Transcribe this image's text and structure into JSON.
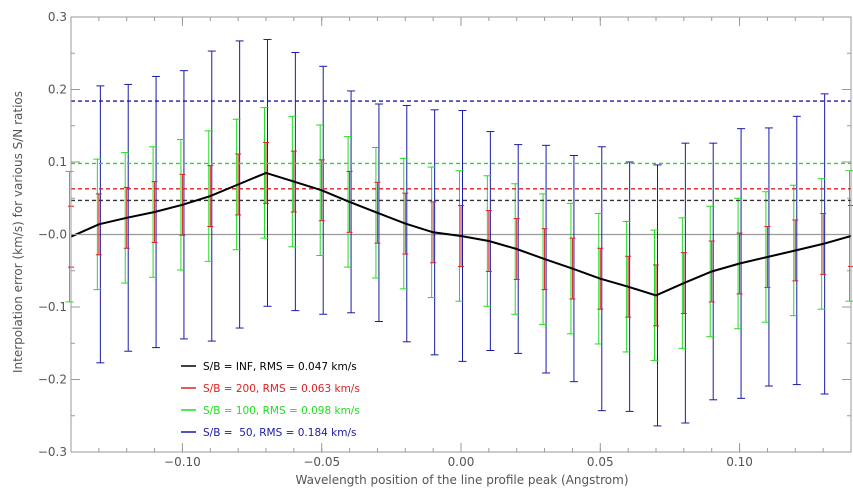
{
  "chart_data": {
    "type": "line",
    "title": "",
    "xlabel": "Wavelength position of the line profile peak (Angstrom)",
    "ylabel": "Interpolation error (km/s) for various S/N ratios",
    "xlim": [
      -0.14,
      0.14
    ],
    "ylim": [
      -0.3,
      0.3
    ],
    "x_ticks": [
      -0.1,
      -0.05,
      0.0,
      0.05,
      0.1
    ],
    "x_tick_labels": [
      "−0.10",
      "−0.05",
      "0.00",
      "0.05",
      "0.10"
    ],
    "y_ticks": [
      -0.3,
      -0.2,
      -0.1,
      0.0,
      0.1,
      0.2,
      0.3
    ],
    "y_tick_labels": [
      "−0.3",
      "−0.2",
      "−0.1",
      "−0.0",
      "0.1",
      "0.2",
      "0.3"
    ],
    "zero_line": 0,
    "grid": false,
    "legend_position": "bottom-left",
    "x": [
      -0.14,
      -0.13,
      -0.12,
      -0.11,
      -0.1,
      -0.09,
      -0.08,
      -0.07,
      -0.06,
      -0.05,
      -0.04,
      -0.03,
      -0.02,
      -0.01,
      0.0,
      0.01,
      0.02,
      0.03,
      0.04,
      0.05,
      0.06,
      0.07,
      0.08,
      0.09,
      0.1,
      0.11,
      0.12,
      0.13,
      0.14
    ],
    "series": [
      {
        "name": "S/B = INF, RMS = 0.047 km/s",
        "color": "#000000",
        "rms": 0.047,
        "values": [
          -0.003,
          0.014,
          0.023,
          0.031,
          0.041,
          0.053,
          0.069,
          0.085,
          0.073,
          0.061,
          0.045,
          0.03,
          0.015,
          0.003,
          -0.002,
          -0.009,
          -0.02,
          -0.034,
          -0.047,
          -0.061,
          -0.072,
          -0.084,
          -0.067,
          -0.051,
          -0.04,
          -0.031,
          -0.022,
          -0.013,
          -0.002
        ]
      },
      {
        "name": "S/B = 200, RMS = 0.063 km/s",
        "color": "#dd2222",
        "rms": 0.063,
        "error_half": 0.042
      },
      {
        "name": "S/B = 100, RMS = 0.098 km/s",
        "color": "#22dd22",
        "rms": 0.098,
        "error_half": 0.09
      },
      {
        "name": "S/B =  50, RMS = 0.184 km/s",
        "color": "#1a1aa8",
        "rms": 0.184,
        "error_half": [
          0.19,
          0.191,
          0.184,
          0.187,
          0.185,
          0.2,
          0.198,
          0.184,
          0.178,
          0.171,
          0.153,
          0.15,
          0.163,
          0.169,
          0.173,
          0.151,
          0.144,
          0.157,
          0.156,
          0.182,
          0.172,
          0.18,
          0.193,
          0.177,
          0.186,
          0.178,
          0.185,
          0.207,
          0.195
        ]
      }
    ]
  },
  "legend": [
    {
      "label": "S/B = INF, RMS = 0.047 km/s",
      "color": "#000000"
    },
    {
      "label": "S/B = 200, RMS = 0.063 km/s",
      "color": "#dd2222"
    },
    {
      "label": "S/B = 100, RMS = 0.098 km/s",
      "color": "#22dd22"
    },
    {
      "label": "S/B =  50, RMS = 0.184 km/s",
      "color": "#1a1aa8"
    }
  ]
}
